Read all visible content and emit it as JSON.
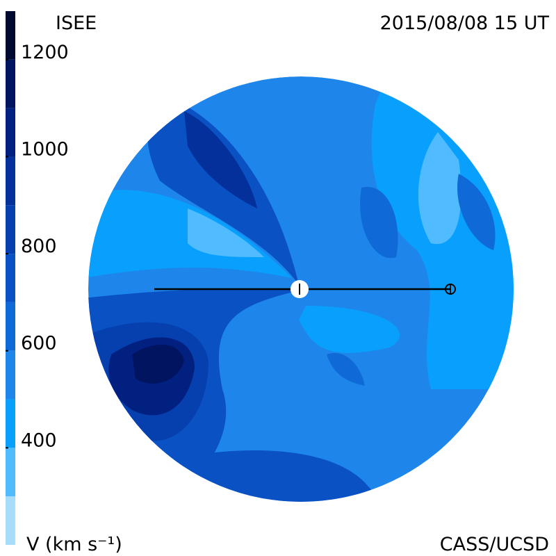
{
  "header": {
    "title": "ISEE",
    "timestamp": "2015/08/08 15 UT",
    "credit": "CASS/UCSD"
  },
  "chart_data": {
    "type": "colorbar",
    "label": "V (km s⁻¹)",
    "vlim": [
      200,
      1300
    ],
    "ticks": [
      400,
      600,
      800,
      1000,
      1200
    ],
    "levels": [
      200,
      300,
      400,
      500,
      600,
      700,
      800,
      900,
      1000,
      1100,
      1200,
      1300
    ],
    "colors": [
      "#a8dcfc",
      "#50bcff",
      "#08a0fc",
      "#1e86ea",
      "#0f6ad8",
      "#0a52c4",
      "#0640ae",
      "#03309a",
      "#022080",
      "#011460",
      "#000a30"
    ]
  }
}
